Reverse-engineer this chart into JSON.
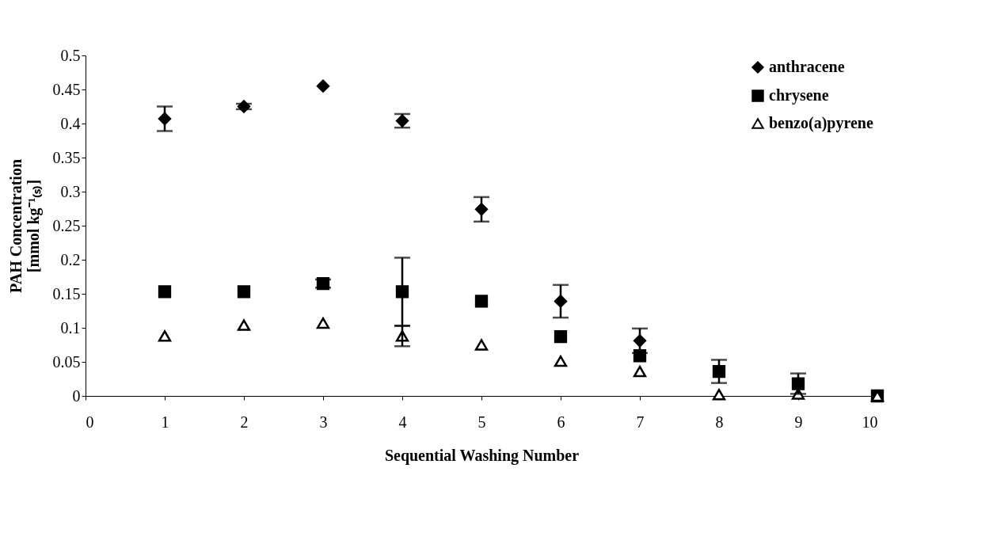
{
  "chart_data": {
    "type": "scatter",
    "xlabel": "Sequential Washing Number",
    "ylabel": "PAH Concentration\n[mmol kg⁻¹₍ₛ₎]",
    "x": [
      1,
      2,
      3,
      4,
      5,
      6,
      7,
      8,
      9,
      10
    ],
    "series": [
      {
        "name": "anthracene",
        "color": "#000000",
        "marker": "diamond",
        "values": [
          0.407,
          0.425,
          0.455,
          0.404,
          0.274,
          0.139,
          0.081,
          null,
          null,
          null
        ],
        "errors": [
          0.018,
          0.004,
          null,
          0.01,
          0.018,
          0.024,
          0.018,
          null,
          null,
          null
        ]
      },
      {
        "name": "chrysene",
        "color": "#000000",
        "marker": "square",
        "values": [
          0.153,
          0.153,
          0.165,
          0.153,
          0.139,
          0.087,
          0.059,
          0.036,
          0.018,
          0
        ],
        "errors": [
          null,
          null,
          0.006,
          0.05,
          null,
          null,
          null,
          0.017,
          0.015,
          null
        ]
      },
      {
        "name": "benzo(a)pyrene",
        "color": "#000000",
        "marker": "triangle",
        "values": [
          0.088,
          0.104,
          0.107,
          0.088,
          0.075,
          0.051,
          0.036,
          0.002,
          0.003,
          0
        ],
        "errors": [
          null,
          null,
          null,
          0.015,
          null,
          null,
          null,
          null,
          null,
          null
        ]
      }
    ],
    "xlim": [
      0,
      10
    ],
    "xticks": [
      0,
      1,
      2,
      3,
      4,
      5,
      6,
      7,
      8,
      9,
      10
    ],
    "ylim": [
      0,
      0.5
    ],
    "yticks": [
      0,
      0.05,
      0.1,
      0.15,
      0.2,
      0.25,
      0.3,
      0.35,
      0.4,
      0.45,
      0.5
    ],
    "legend": "top right",
    "grid": false
  }
}
